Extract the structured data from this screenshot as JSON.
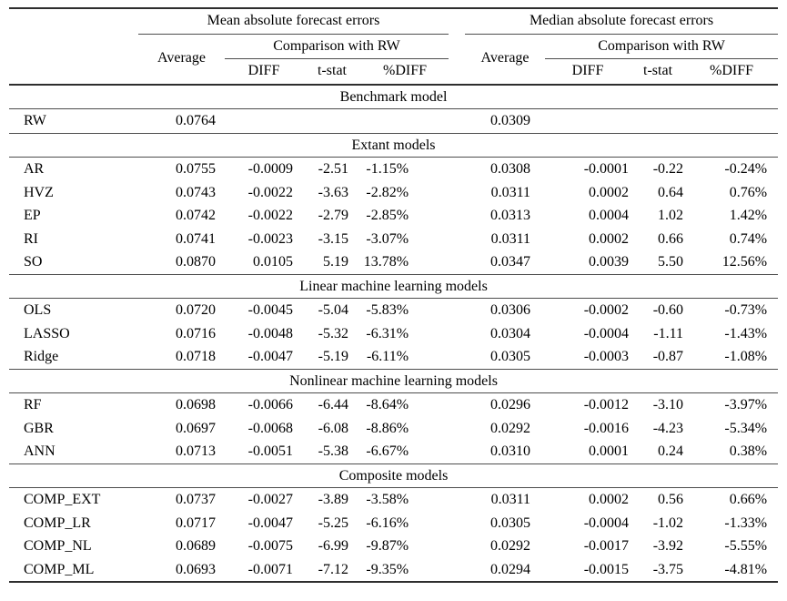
{
  "table": {
    "group_headers": [
      {
        "label": "Mean absolute forecast errors"
      },
      {
        "label": "Median absolute forecast errors"
      }
    ],
    "average_header": "Average",
    "comparison_header": "Comparison with RW",
    "metric_headers": [
      "DIFF",
      "t-stat",
      "%DIFF"
    ],
    "sections": [
      {
        "title": "Benchmark model",
        "rows": [
          {
            "model": "RW",
            "mean": [
              "0.0764",
              "",
              "",
              ""
            ],
            "median": [
              "0.0309",
              "",
              "",
              ""
            ]
          }
        ]
      },
      {
        "title": "Extant models",
        "rows": [
          {
            "model": "AR",
            "mean": [
              "0.0755",
              "-0.0009",
              "-2.51",
              "-1.15%"
            ],
            "median": [
              "0.0308",
              "-0.0001",
              "-0.22",
              "-0.24%"
            ]
          },
          {
            "model": "HVZ",
            "mean": [
              "0.0743",
              "-0.0022",
              "-3.63",
              "-2.82%"
            ],
            "median": [
              "0.0311",
              "0.0002",
              "0.64",
              "0.76%"
            ]
          },
          {
            "model": "EP",
            "mean": [
              "0.0742",
              "-0.0022",
              "-2.79",
              "-2.85%"
            ],
            "median": [
              "0.0313",
              "0.0004",
              "1.02",
              "1.42%"
            ]
          },
          {
            "model": "RI",
            "mean": [
              "0.0741",
              "-0.0023",
              "-3.15",
              "-3.07%"
            ],
            "median": [
              "0.0311",
              "0.0002",
              "0.66",
              "0.74%"
            ]
          },
          {
            "model": "SO",
            "mean": [
              "0.0870",
              "0.0105",
              "5.19",
              "13.78%"
            ],
            "median": [
              "0.0347",
              "0.0039",
              "5.50",
              "12.56%"
            ]
          }
        ]
      },
      {
        "title": "Linear machine learning models",
        "rows": [
          {
            "model": "OLS",
            "mean": [
              "0.0720",
              "-0.0045",
              "-5.04",
              "-5.83%"
            ],
            "median": [
              "0.0306",
              "-0.0002",
              "-0.60",
              "-0.73%"
            ]
          },
          {
            "model": "LASSO",
            "mean": [
              "0.0716",
              "-0.0048",
              "-5.32",
              "-6.31%"
            ],
            "median": [
              "0.0304",
              "-0.0004",
              "-1.11",
              "-1.43%"
            ]
          },
          {
            "model": "Ridge",
            "mean": [
              "0.0718",
              "-0.0047",
              "-5.19",
              "-6.11%"
            ],
            "median": [
              "0.0305",
              "-0.0003",
              "-0.87",
              "-1.08%"
            ]
          }
        ]
      },
      {
        "title": "Nonlinear machine learning models",
        "rows": [
          {
            "model": "RF",
            "mean": [
              "0.0698",
              "-0.0066",
              "-6.44",
              "-8.64%"
            ],
            "median": [
              "0.0296",
              "-0.0012",
              "-3.10",
              "-3.97%"
            ]
          },
          {
            "model": "GBR",
            "mean": [
              "0.0697",
              "-0.0068",
              "-6.08",
              "-8.86%"
            ],
            "median": [
              "0.0292",
              "-0.0016",
              "-4.23",
              "-5.34%"
            ]
          },
          {
            "model": "ANN",
            "mean": [
              "0.0713",
              "-0.0051",
              "-5.38",
              "-6.67%"
            ],
            "median": [
              "0.0310",
              "0.0001",
              "0.24",
              "0.38%"
            ]
          }
        ]
      },
      {
        "title": "Composite models",
        "rows": [
          {
            "model": "COMP_EXT",
            "mean": [
              "0.0737",
              "-0.0027",
              "-3.89",
              "-3.58%"
            ],
            "median": [
              "0.0311",
              "0.0002",
              "0.56",
              "0.66%"
            ]
          },
          {
            "model": "COMP_LR",
            "mean": [
              "0.0717",
              "-0.0047",
              "-5.25",
              "-6.16%"
            ],
            "median": [
              "0.0305",
              "-0.0004",
              "-1.02",
              "-1.33%"
            ]
          },
          {
            "model": "COMP_NL",
            "mean": [
              "0.0689",
              "-0.0075",
              "-6.99",
              "-9.87%"
            ],
            "median": [
              "0.0292",
              "-0.0017",
              "-3.92",
              "-5.55%"
            ]
          },
          {
            "model": "COMP_ML",
            "mean": [
              "0.0693",
              "-0.0071",
              "-7.12",
              "-9.35%"
            ],
            "median": [
              "0.0294",
              "-0.0015",
              "-3.75",
              "-4.81%"
            ]
          }
        ]
      }
    ]
  }
}
